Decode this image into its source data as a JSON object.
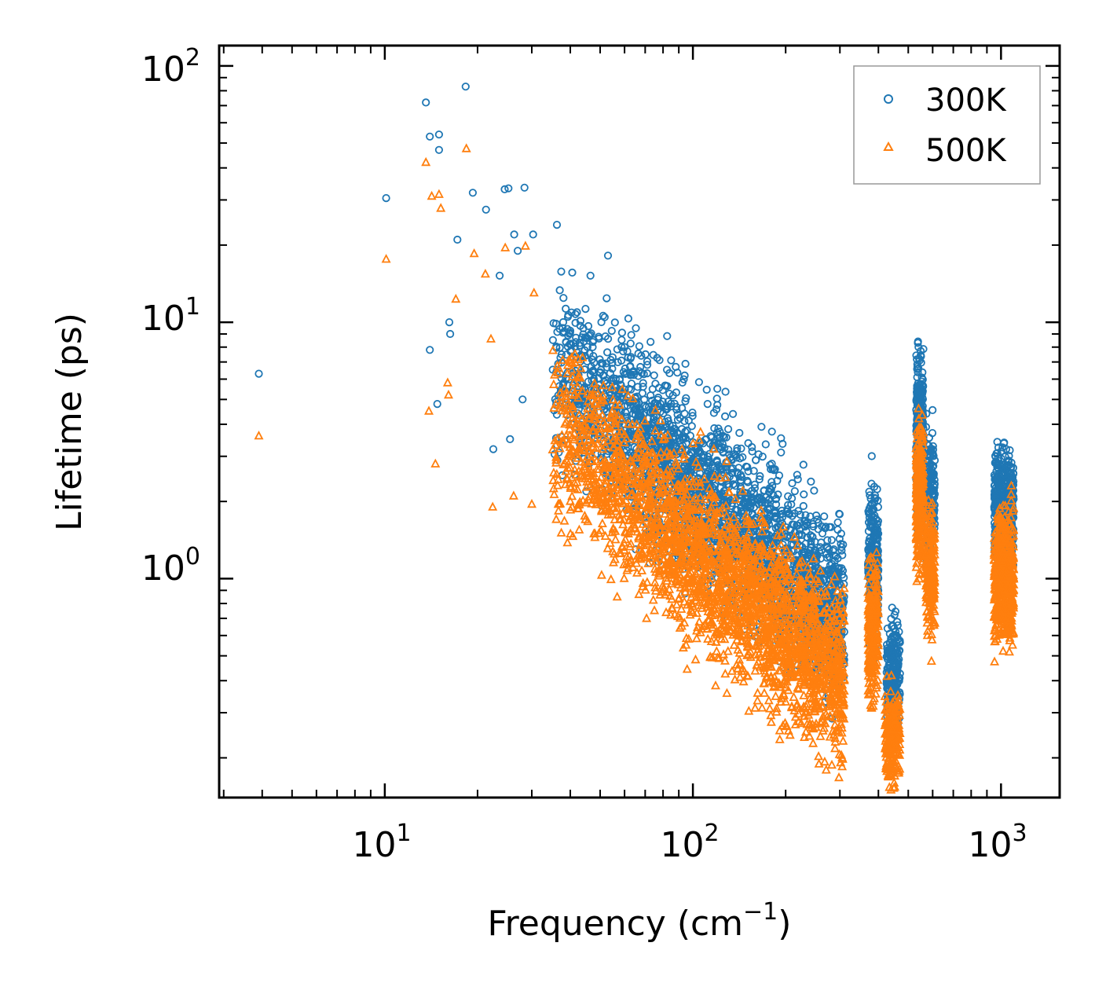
{
  "chart_data": {
    "type": "scatter",
    "title": "",
    "xlabel": "Frequency (cm",
    "xlabel_sup": "−1",
    "xlabel_suffix": ")",
    "ylabel": "Lifetime (ps)",
    "xscale": "log",
    "yscale": "log",
    "xlim": [
      2.9,
      1550
    ],
    "ylim": [
      0.14,
      120
    ],
    "xticks": [
      {
        "base": "10",
        "exp": "1",
        "value": 10
      },
      {
        "base": "10",
        "exp": "2",
        "value": 100
      },
      {
        "base": "10",
        "exp": "3",
        "value": 1000
      }
    ],
    "yticks": [
      {
        "base": "10",
        "exp": "0",
        "value": 1
      },
      {
        "base": "10",
        "exp": "1",
        "value": 10
      },
      {
        "base": "10",
        "exp": "2",
        "value": 100
      }
    ],
    "legend_position": "top-right",
    "series": [
      {
        "name": "300K",
        "color": "#1f77b4",
        "marker": "circle",
        "sample_points": [
          [
            3.9,
            6.3
          ],
          [
            10.1,
            30.5
          ],
          [
            13.6,
            72
          ],
          [
            14.0,
            53
          ],
          [
            15.0,
            54
          ],
          [
            15.0,
            47
          ],
          [
            18.3,
            83
          ],
          [
            19.3,
            32
          ],
          [
            21.3,
            27.5
          ],
          [
            24.5,
            33
          ],
          [
            25.2,
            33.3
          ],
          [
            28.4,
            33.5
          ],
          [
            17.2,
            21
          ],
          [
            26.3,
            22
          ],
          [
            14.0,
            7.8
          ],
          [
            14.8,
            4.8
          ],
          [
            16.2,
            10
          ],
          [
            16.3,
            9
          ],
          [
            22.5,
            3.2
          ],
          [
            25.5,
            3.5
          ],
          [
            28.0,
            5
          ],
          [
            36.2,
            24
          ],
          [
            30.3,
            22
          ],
          [
            23.6,
            15.2
          ],
          [
            27.0,
            19
          ],
          [
            53.0,
            18.2
          ],
          [
            46.5,
            15.2
          ],
          [
            52.5,
            12.4
          ],
          [
            60.0,
            8.0
          ],
          [
            85.0,
            7.1
          ],
          [
            88.0,
            6.7
          ],
          [
            94.0,
            6.2
          ],
          [
            120.0,
            5.5
          ],
          [
            160.0,
            2.9
          ],
          [
            181.0,
            2.3
          ],
          [
            205.0,
            1.8
          ],
          [
            310.0,
            0.62
          ],
          [
            378.0,
            2.05
          ],
          [
            455.0,
            0.62
          ],
          [
            545.0,
            7.1
          ],
          [
            590.0,
            3.0
          ],
          [
            1040.0,
            3.2
          ],
          [
            1070.0,
            2.3
          ]
        ]
      },
      {
        "name": "500K",
        "color": "#ff7f0e",
        "marker": "triangle",
        "sample_points": [
          [
            3.9,
            3.6
          ],
          [
            10.1,
            17.6
          ],
          [
            13.6,
            42
          ],
          [
            14.2,
            31
          ],
          [
            15.0,
            31.5
          ],
          [
            15.2,
            27.8
          ],
          [
            18.4,
            47.5
          ],
          [
            19.5,
            18.5
          ],
          [
            17.0,
            12.3
          ],
          [
            21.2,
            15.4
          ],
          [
            24.6,
            19.5
          ],
          [
            28.6,
            19.8
          ],
          [
            13.9,
            4.5
          ],
          [
            14.6,
            2.8
          ],
          [
            16.0,
            5.8
          ],
          [
            16.1,
            5.2
          ],
          [
            22.4,
            1.9
          ],
          [
            26.2,
            2.1
          ],
          [
            30.0,
            1.95
          ],
          [
            36.0,
            1.7
          ],
          [
            40.0,
            2.0
          ],
          [
            22.1,
            8.6
          ],
          [
            30.5,
            13.0
          ],
          [
            75.0,
            0.75
          ],
          [
            95.0,
            0.55
          ],
          [
            130.0,
            0.52
          ],
          [
            200.0,
            0.33
          ],
          [
            230.0,
            0.24
          ],
          [
            305.0,
            0.2
          ],
          [
            310.0,
            0.4
          ],
          [
            398.0,
            0.75
          ],
          [
            430.0,
            0.17
          ],
          [
            540.0,
            4.6
          ],
          [
            570.0,
            1.8
          ],
          [
            1000.0,
            0.62
          ],
          [
            1080.0,
            2.3
          ],
          [
            1090.0,
            0.55
          ]
        ]
      }
    ]
  }
}
